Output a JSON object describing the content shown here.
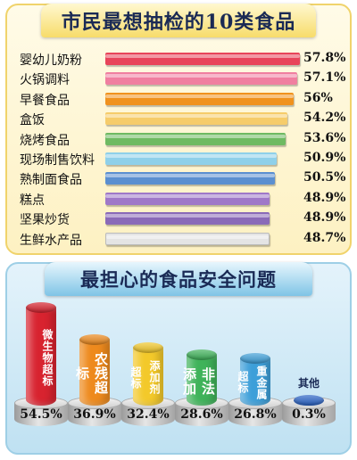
{
  "chart_data": [
    {
      "type": "bar",
      "orientation": "horizontal",
      "title": "市民最想抽检的10类食品",
      "categories": [
        "婴幼儿奶粉",
        "火锅调料",
        "早餐食品",
        "盒饭",
        "烧烤食品",
        "现场制售饮料",
        "熟制面食品",
        "糕点",
        "坚果炒货",
        "生鲜水产品"
      ],
      "values": [
        57.8,
        57.1,
        56,
        54.2,
        53.6,
        50.9,
        50.5,
        48.9,
        48.9,
        48.7
      ],
      "value_labels": [
        "57.8%",
        "57.1%",
        "56%",
        "54.2%",
        "53.6%",
        "50.9%",
        "50.5%",
        "48.9%",
        "48.9%",
        "48.7%"
      ],
      "colors": [
        "#e8445a",
        "#f07fa0",
        "#f0921e",
        "#f6cc6a",
        "#6fba62",
        "#8fd0e9",
        "#5b8fd0",
        "#9f78c8",
        "#8a6ab8",
        "#e4e4e4"
      ]
    },
    {
      "type": "bar",
      "title": "最担心的食品安全问题",
      "categories": [
        "微生物超标",
        "农残超标",
        "添加剂超标",
        "非法添加",
        "重金属超标",
        "其他"
      ],
      "values": [
        54.5,
        36.9,
        32.4,
        28.6,
        26.8,
        0.3
      ],
      "value_labels": [
        "54.5%",
        "36.9%",
        "32.4%",
        "28.6%",
        "26.8%",
        "0.3%"
      ],
      "colors": [
        "#d8232f",
        "#ee8a1d",
        "#f3c92a",
        "#3fb35a",
        "#3d9fd9",
        "#2a64c8"
      ]
    }
  ]
}
